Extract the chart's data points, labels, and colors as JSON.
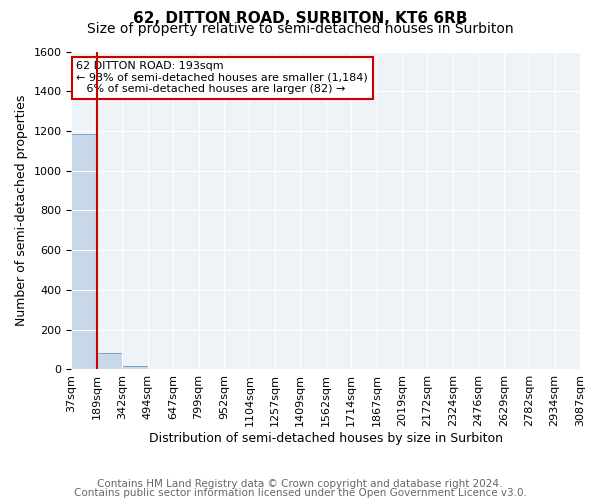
{
  "title": "62, DITTON ROAD, SURBITON, KT6 6RB",
  "subtitle": "Size of property relative to semi-detached houses in Surbiton",
  "xlabel": "Distribution of semi-detached houses by size in Surbiton",
  "ylabel": "Number of semi-detached properties",
  "footnote1": "Contains HM Land Registry data © Crown copyright and database right 2024.",
  "footnote2": "Contains public sector information licensed under the Open Government Licence v3.0.",
  "bin_labels": [
    "37sqm",
    "189sqm",
    "342sqm",
    "494sqm",
    "647sqm",
    "799sqm",
    "952sqm",
    "1104sqm",
    "1257sqm",
    "1409sqm",
    "1562sqm",
    "1714sqm",
    "1867sqm",
    "2019sqm",
    "2172sqm",
    "2324sqm",
    "2476sqm",
    "2629sqm",
    "2782sqm",
    "2934sqm",
    "3087sqm"
  ],
  "bar_values": [
    1184,
    82,
    18,
    0,
    0,
    0,
    0,
    0,
    0,
    0,
    0,
    0,
    0,
    0,
    0,
    0,
    0,
    0,
    0,
    0
  ],
  "bar_color": "#c8d8e8",
  "bar_edge_color": "#5a8ab0",
  "ylim": [
    0,
    1600
  ],
  "yticks": [
    0,
    200,
    400,
    600,
    800,
    1000,
    1200,
    1400,
    1600
  ],
  "property_label": "62 DITTON ROAD: 193sqm",
  "annotation_smaller_pct": 93,
  "annotation_smaller_count": 1184,
  "annotation_larger_pct": 6,
  "annotation_larger_count": 82,
  "annotation_box_color": "#cc0000",
  "title_fontsize": 11,
  "subtitle_fontsize": 10,
  "axis_label_fontsize": 9,
  "tick_fontsize": 8,
  "footnote_fontsize": 7.5
}
